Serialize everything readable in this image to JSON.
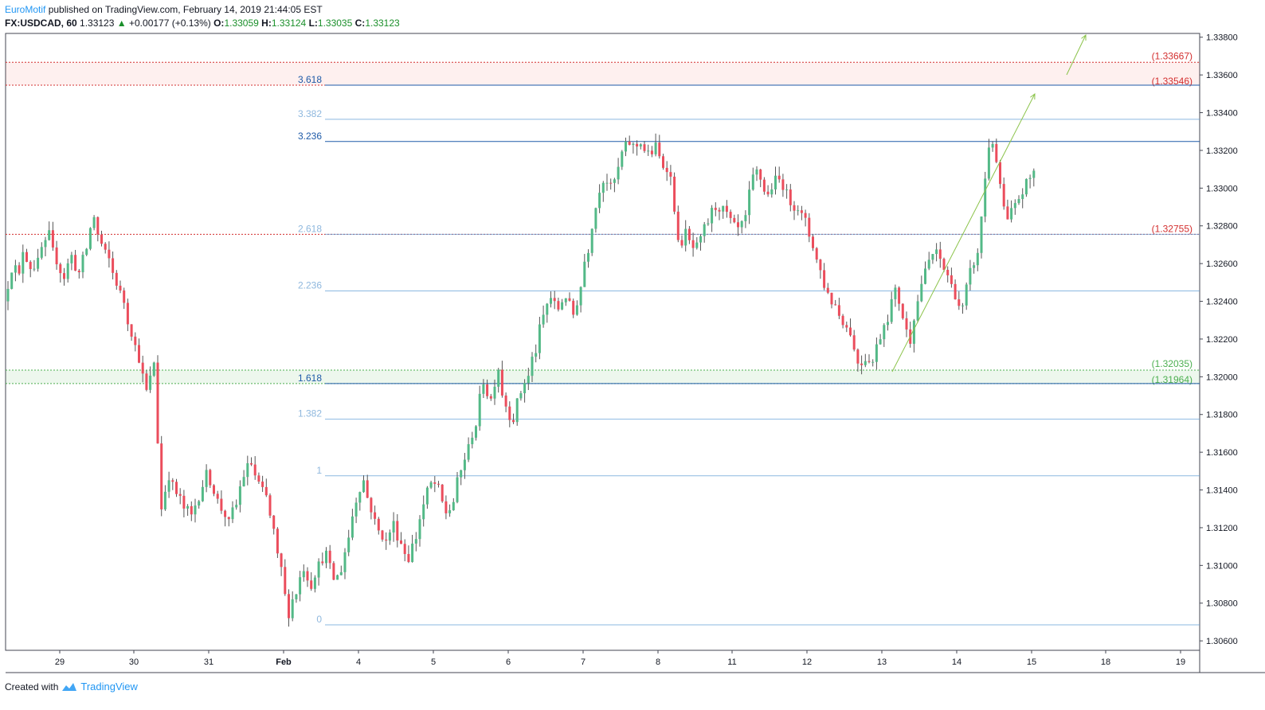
{
  "header": {
    "author": "EuroMotif",
    "published": "published on TradingView.com, February 14, 2019 21:44:05 EST",
    "symbol": "FX:USDCAD, 60",
    "last": "1.33123",
    "change": "+0.00177 (+0.13%)",
    "o_label": "O:",
    "o": "1.33059",
    "h_label": "H:",
    "h": "1.33124",
    "l_label": "L:",
    "l": "1.33035",
    "c_label": "C:",
    "c": "1.33123"
  },
  "footer": {
    "created_with": "Created with",
    "brand": "TradingView"
  },
  "colors": {
    "up": "#53b987",
    "down": "#eb4d5c",
    "fib": "#5b9bd5",
    "fib_dark": "#1e5aa8",
    "support": "#4caf50",
    "resistance": "#d32f2f"
  },
  "chart_data": {
    "type": "candlestick",
    "ylim": [
      1.3055,
      1.3382
    ],
    "y_ticks": [
      "1.30600",
      "1.30800",
      "1.31000",
      "1.31200",
      "1.31400",
      "1.31600",
      "1.31800",
      "1.32000",
      "1.32200",
      "1.32400",
      "1.32600",
      "1.32800",
      "1.33000",
      "1.33200",
      "1.33400",
      "1.33600",
      "1.33800"
    ],
    "x_ticks": [
      "29",
      "30",
      "31",
      "Feb",
      "4",
      "5",
      "6",
      "7",
      "8",
      "11",
      "12",
      "13",
      "14",
      "15",
      "18",
      "19"
    ],
    "fib_levels": [
      {
        "label": "3.618",
        "price": 1.33546,
        "dark": true
      },
      {
        "label": "3.382",
        "price": 1.33365
      },
      {
        "label": "3.236",
        "price": 1.33247,
        "dark": true
      },
      {
        "label": "2.618",
        "price": 1.32755
      },
      {
        "label": "2.236",
        "price": 1.32455
      },
      {
        "label": "1.618",
        "price": 1.31964,
        "dark": true
      },
      {
        "label": "1.382",
        "price": 1.31775
      },
      {
        "label": "1",
        "price": 1.31475
      },
      {
        "label": "0",
        "price": 1.30685
      }
    ],
    "zones": [
      {
        "kind": "resistance",
        "top": 1.33667,
        "bottom": 1.33546,
        "labels": [
          "(1.33667)",
          "(1.33546)"
        ]
      },
      {
        "kind": "support",
        "top": 1.32035,
        "bottom": 1.31964,
        "labels": [
          "(1.32035)",
          "(1.31964)"
        ]
      }
    ],
    "levels": [
      {
        "kind": "resistance",
        "price": 1.32755,
        "label": "(1.32755)"
      }
    ],
    "path": [
      [
        1.324,
        1.3258
      ],
      [
        1.3262,
        1.3253
      ],
      [
        1.3272,
        1.3263
      ],
      [
        1.3258,
        1.3259
      ],
      [
        1.3253,
        1.3268
      ],
      [
        1.3265,
        1.3275
      ],
      [
        1.327,
        1.3262
      ],
      [
        1.326,
        1.3253
      ],
      [
        1.3255,
        1.3264
      ],
      [
        1.3262,
        1.3255
      ],
      [
        1.3256,
        1.3268
      ],
      [
        1.3272,
        1.3285
      ],
      [
        1.328,
        1.327
      ],
      [
        1.3268,
        1.3262
      ],
      [
        1.326,
        1.325
      ],
      [
        1.3248,
        1.324
      ],
      [
        1.3236,
        1.3224
      ],
      [
        1.3222,
        1.321
      ],
      [
        1.3208,
        1.3192
      ],
      [
        1.319,
        1.3208
      ],
      [
        1.3202,
        1.313
      ],
      [
        1.3132,
        1.3148
      ],
      [
        1.3146,
        1.3138
      ],
      [
        1.314,
        1.313
      ],
      [
        1.3132,
        1.3126
      ],
      [
        1.3127,
        1.3137
      ],
      [
        1.3138,
        1.3148
      ],
      [
        1.315,
        1.314
      ],
      [
        1.3138,
        1.313
      ],
      [
        1.3132,
        1.3122
      ],
      [
        1.3125,
        1.3132
      ],
      [
        1.3135,
        1.3148
      ],
      [
        1.315,
        1.3154
      ],
      [
        1.3152,
        1.3143
      ],
      [
        1.3142,
        1.3136
      ],
      [
        1.3134,
        1.3118
      ],
      [
        1.311,
        1.3098
      ],
      [
        1.3092,
        1.3075
      ],
      [
        1.3078,
        1.3086
      ],
      [
        1.3088,
        1.3099
      ],
      [
        1.3098,
        1.309
      ],
      [
        1.3092,
        1.31
      ],
      [
        1.3102,
        1.3106
      ],
      [
        1.3104,
        1.3093
      ],
      [
        1.309,
        1.3098
      ],
      [
        1.31,
        1.3115
      ],
      [
        1.3118,
        1.3135
      ],
      [
        1.3138,
        1.3145
      ],
      [
        1.3142,
        1.313
      ],
      [
        1.3128,
        1.3118
      ],
      [
        1.312,
        1.3112
      ],
      [
        1.3114,
        1.3122
      ],
      [
        1.312,
        1.3112
      ],
      [
        1.311,
        1.3104
      ],
      [
        1.3106,
        1.3115
      ],
      [
        1.3118,
        1.3132
      ],
      [
        1.3135,
        1.3143
      ],
      [
        1.3146,
        1.314
      ],
      [
        1.3138,
        1.3128
      ],
      [
        1.3126,
        1.3134
      ],
      [
        1.3138,
        1.315
      ],
      [
        1.3152,
        1.3162
      ],
      [
        1.3165,
        1.3175
      ],
      [
        1.3178,
        1.3198
      ],
      [
        1.3195,
        1.3188
      ],
      [
        1.319,
        1.3205
      ],
      [
        1.3198,
        1.3185
      ],
      [
        1.3182,
        1.3178
      ],
      [
        1.318,
        1.3192
      ],
      [
        1.3195,
        1.32
      ],
      [
        1.3205,
        1.3214
      ],
      [
        1.3218,
        1.3232
      ],
      [
        1.3235,
        1.3242
      ],
      [
        1.324,
        1.3236
      ],
      [
        1.3238,
        1.3243
      ],
      [
        1.3242,
        1.3233
      ],
      [
        1.3232,
        1.3248
      ],
      [
        1.3255,
        1.3268
      ],
      [
        1.3272,
        1.329
      ],
      [
        1.3295,
        1.3305
      ],
      [
        1.3308,
        1.33
      ],
      [
        1.3298,
        1.331
      ],
      [
        1.3315,
        1.3322
      ],
      [
        1.3326,
        1.3322
      ],
      [
        1.332,
        1.3325
      ],
      [
        1.3322,
        1.3318
      ],
      [
        1.3316,
        1.3322
      ],
      [
        1.332,
        1.3312
      ],
      [
        1.3318,
        1.3305
      ],
      [
        1.331,
        1.327
      ],
      [
        1.3268,
        1.3276
      ],
      [
        1.3274,
        1.3268
      ],
      [
        1.3265,
        1.3272
      ],
      [
        1.3275,
        1.3282
      ],
      [
        1.3285,
        1.329
      ],
      [
        1.3292,
        1.3288
      ],
      [
        1.329,
        1.3282
      ],
      [
        1.328,
        1.3278
      ],
      [
        1.3276,
        1.3284
      ],
      [
        1.3288,
        1.3305
      ],
      [
        1.3312,
        1.3305
      ],
      [
        1.3302,
        1.3296
      ],
      [
        1.3298,
        1.3304
      ],
      [
        1.3306,
        1.3302
      ],
      [
        1.33,
        1.3293
      ],
      [
        1.3292,
        1.329
      ],
      [
        1.3288,
        1.3282
      ],
      [
        1.328,
        1.327
      ],
      [
        1.3268,
        1.3256
      ],
      [
        1.3254,
        1.3244
      ],
      [
        1.3242,
        1.3238
      ],
      [
        1.3236,
        1.323
      ],
      [
        1.3228,
        1.3224
      ],
      [
        1.322,
        1.3208
      ],
      [
        1.3206,
        1.321
      ],
      [
        1.3212,
        1.3208
      ],
      [
        1.321,
        1.3222
      ],
      [
        1.3225,
        1.3232
      ],
      [
        1.3235,
        1.3245
      ],
      [
        1.3248,
        1.3232
      ],
      [
        1.3228,
        1.322
      ],
      [
        1.3225,
        1.324
      ],
      [
        1.3245,
        1.3255
      ],
      [
        1.3258,
        1.3265
      ],
      [
        1.3268,
        1.3262
      ],
      [
        1.326,
        1.3254
      ],
      [
        1.3252,
        1.3244
      ],
      [
        1.324,
        1.3236
      ],
      [
        1.3238,
        1.3255
      ],
      [
        1.3258,
        1.3264
      ],
      [
        1.3266,
        1.3305
      ],
      [
        1.332,
        1.3325
      ],
      [
        1.332,
        1.3302
      ],
      [
        1.3295,
        1.3282
      ],
      [
        1.3284,
        1.329
      ],
      [
        1.3292,
        1.3298
      ],
      [
        1.33,
        1.3305
      ],
      [
        1.3306,
        1.3312
      ]
    ]
  }
}
